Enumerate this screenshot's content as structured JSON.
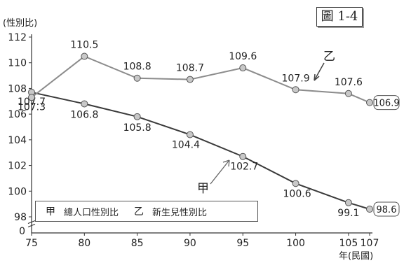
{
  "figure_label": "圖 1-4",
  "legend": {
    "items": [
      {
        "marker": "甲",
        "label": "總人口性別比"
      },
      {
        "marker": "乙",
        "label": "新生兒性別比"
      }
    ]
  },
  "annotations": {
    "series_a_marker": "甲",
    "series_b_marker": "乙"
  },
  "chart_data": {
    "type": "line",
    "title": "",
    "ylabel": "(性別比)",
    "xlabel": "年(民國)",
    "x": [
      75,
      80,
      85,
      90,
      95,
      100,
      105,
      107
    ],
    "ylim": [
      98,
      112
    ],
    "yticks": [
      98,
      100,
      102,
      104,
      106,
      108,
      110,
      112
    ],
    "y_axis_break": true,
    "y_axis_zero_label": "0",
    "grid": false,
    "legend_position": "bottom-left",
    "series": [
      {
        "name": "總人口性別比",
        "marker": "甲",
        "values": [
          107.7,
          106.8,
          105.8,
          104.4,
          102.7,
          100.6,
          99.1,
          98.6
        ],
        "labels": [
          "107.7",
          "106.8",
          "105.8",
          "104.4",
          "102.7",
          "100.6",
          "99.1",
          "98.6"
        ],
        "color": "#3a3a3a"
      },
      {
        "name": "新生兒性別比",
        "marker": "乙",
        "values": [
          107.3,
          110.5,
          108.8,
          108.7,
          109.6,
          107.9,
          107.6,
          106.9
        ],
        "labels": [
          "107.3",
          "110.5",
          "108.8",
          "108.7",
          "109.6",
          "107.9",
          "107.6",
          "106.9"
        ],
        "color": "#8c8c8c"
      }
    ]
  }
}
